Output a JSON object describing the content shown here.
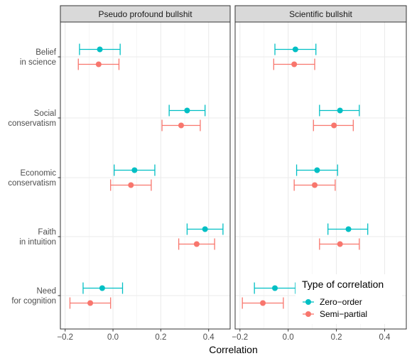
{
  "chart_data": {
    "type": "errorbar",
    "x_title": "Correlation",
    "xlim": [
      -0.22,
      0.49
    ],
    "x_ticks": [
      -0.2,
      0.0,
      0.2,
      0.4
    ],
    "x_tick_labels": [
      "−0.2",
      "0.0",
      "0.2",
      "0.4"
    ],
    "categories": [
      [
        "Belief",
        "in science"
      ],
      [
        "Social",
        "conservatism"
      ],
      [
        "Economic",
        "conservatism"
      ],
      [
        "Faith",
        "in intuition"
      ],
      [
        "Need",
        "for cognition"
      ]
    ],
    "legend": {
      "title": "Type of correlation",
      "position": "bottom-right (inside)",
      "items": [
        {
          "label": "Zero−order",
          "color": "#00BFC4"
        },
        {
          "label": "Semi−partial",
          "color": "#F8766D"
        }
      ]
    },
    "panels": [
      {
        "title": "Pseudo profound bullshit",
        "series": [
          {
            "name": "Zero-order",
            "color": "#00BFC4",
            "estimate": [
              -0.055,
              0.31,
              0.09,
              0.385,
              -0.045
            ],
            "lower": [
              -0.14,
              0.235,
              0.005,
              0.31,
              -0.125
            ],
            "upper": [
              0.03,
              0.385,
              0.175,
              0.46,
              0.04
            ]
          },
          {
            "name": "Semi-partial",
            "color": "#F8766D",
            "estimate": [
              -0.06,
              0.285,
              0.075,
              0.35,
              -0.095
            ],
            "lower": [
              -0.145,
              0.205,
              -0.01,
              0.275,
              -0.18
            ],
            "upper": [
              0.025,
              0.365,
              0.16,
              0.425,
              -0.01
            ]
          }
        ]
      },
      {
        "title": "Scientific bullshit",
        "series": [
          {
            "name": "Zero-order",
            "color": "#00BFC4",
            "estimate": [
              0.03,
              0.215,
              0.12,
              0.25,
              -0.055
            ],
            "lower": [
              -0.055,
              0.13,
              0.035,
              0.165,
              -0.14
            ],
            "upper": [
              0.115,
              0.295,
              0.205,
              0.33,
              0.03
            ]
          },
          {
            "name": "Semi-partial",
            "color": "#F8766D",
            "estimate": [
              0.025,
              0.19,
              0.11,
              0.215,
              -0.105
            ],
            "lower": [
              -0.06,
              0.105,
              0.025,
              0.13,
              -0.19
            ],
            "upper": [
              0.11,
              0.27,
              0.195,
              0.295,
              -0.02
            ]
          }
        ]
      }
    ]
  }
}
